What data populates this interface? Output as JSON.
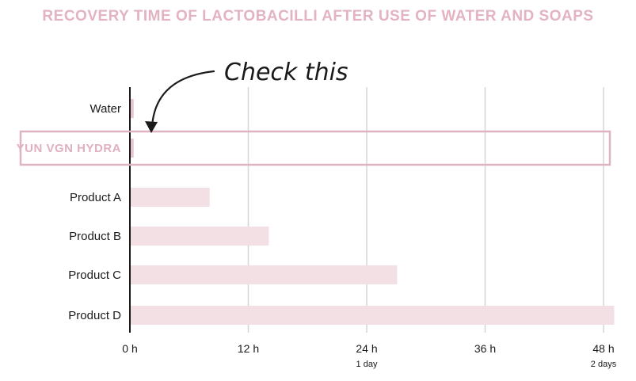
{
  "chart_data": {
    "type": "bar",
    "orientation": "horizontal",
    "title": "RECOVERY TIME OF LACTOBACILLI AFTER USE OF WATER AND SOAPS",
    "categories": [
      "Water",
      "YUN VGN HYDRA",
      "Product A",
      "Product B",
      "Product C",
      "Product D"
    ],
    "values": [
      0.3,
      0.3,
      8,
      14,
      27,
      49
    ],
    "unit": "h",
    "xlim": [
      0,
      48
    ],
    "x_ticks": [
      {
        "value": 0,
        "label": "0 h",
        "sub": ""
      },
      {
        "value": 12,
        "label": "12 h",
        "sub": ""
      },
      {
        "value": 24,
        "label": "24 h",
        "sub": "1 day"
      },
      {
        "value": 36,
        "label": "36 h",
        "sub": ""
      },
      {
        "value": 48,
        "label": "48 h",
        "sub": "2 days"
      }
    ],
    "highlighted_category": "YUN VGN HYDRA",
    "annotation": "Check this",
    "grid": "vertical",
    "colors": {
      "bar": "#f2e0e5",
      "bar_small": "#e9c3cf",
      "highlight": "#dfb3c1",
      "title": "#e3b3c2",
      "grid": "#d6d6d6",
      "axis": "#1a1a1a"
    }
  }
}
